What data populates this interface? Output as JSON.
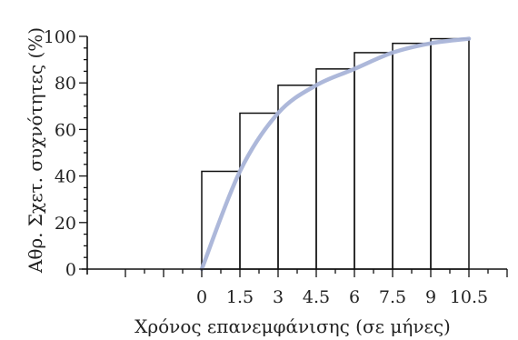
{
  "chart_data": {
    "type": "bar",
    "title": "",
    "xlabel": "Χρόνος επανεμφάνισης (σε μήνες)",
    "ylabel": "Αθρ. Σχετ. συχνότητες (%)",
    "x_ticks": [
      "0",
      "1.5",
      "3",
      "4.5",
      "6",
      "7.5",
      "9",
      "10.5"
    ],
    "y_ticks": [
      "0",
      "20",
      "40",
      "60",
      "80",
      "100"
    ],
    "xlim": [
      -4.5,
      12.0
    ],
    "ylim": [
      0,
      100
    ],
    "bins": [
      {
        "from": 0.0,
        "to": 1.5,
        "value": 42
      },
      {
        "from": 1.5,
        "to": 3.0,
        "value": 67
      },
      {
        "from": 3.0,
        "to": 4.5,
        "value": 79
      },
      {
        "from": 4.5,
        "to": 6.0,
        "value": 86
      },
      {
        "from": 6.0,
        "to": 7.5,
        "value": 93
      },
      {
        "from": 7.5,
        "to": 9.0,
        "value": 97
      },
      {
        "from": 9.0,
        "to": 10.5,
        "value": 99
      }
    ],
    "ogive": {
      "x": [
        0.0,
        1.5,
        3.0,
        4.5,
        6.0,
        7.5,
        9.0,
        10.5
      ],
      "y": [
        0,
        42,
        67,
        79,
        86,
        93,
        97,
        99
      ]
    },
    "colors": {
      "bars": "#111111",
      "ogive": "#a9b4d8",
      "axes": "#111111"
    },
    "grid": false,
    "legend": "none"
  }
}
